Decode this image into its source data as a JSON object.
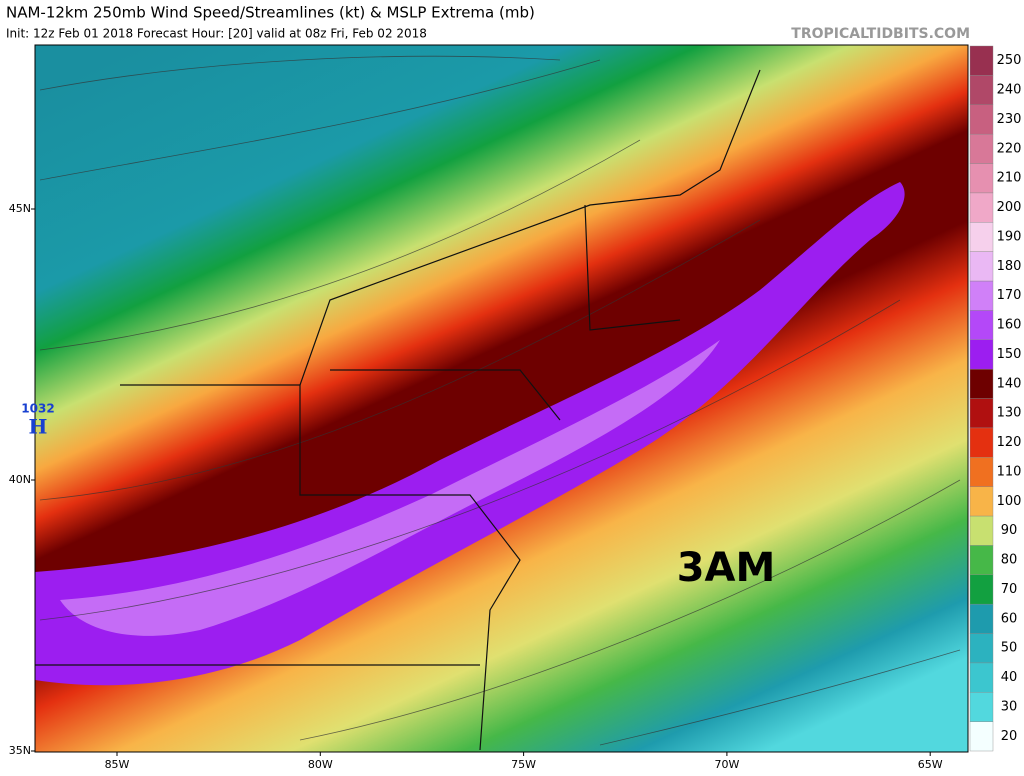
{
  "header": {
    "title": "NAM-12km 250mb Wind Speed/Streamlines (kt) & MSLP Extrema (mb)",
    "subtitle": "Init: 12z Feb 01 2018   Forecast Hour: [20]   valid at 08z Fri, Feb 02 2018",
    "site": "TROPICALTIDBITS.COM"
  },
  "map": {
    "lat_labels": [
      "45N",
      "40N",
      "35N"
    ],
    "lon_labels": [
      "85W",
      "80W",
      "75W",
      "70W",
      "65W"
    ],
    "pressure_label": "1032",
    "pressure_symbol": "H",
    "annotation": "3AM"
  },
  "colorbar": {
    "levels": [
      20,
      30,
      40,
      50,
      60,
      70,
      80,
      90,
      100,
      110,
      120,
      130,
      140,
      150,
      160,
      170,
      180,
      190,
      200,
      210,
      220,
      230,
      240,
      250
    ],
    "colors": [
      "#f4ffff",
      "#52d8de",
      "#3cc6cf",
      "#2cb2bf",
      "#1e9bad",
      "#12a040",
      "#46b848",
      "#c8e070",
      "#f8b448",
      "#f07020",
      "#e43010",
      "#b01010",
      "#6e0000",
      "#9c1ef0",
      "#b448f8",
      "#d080f8",
      "#eab8f4",
      "#f6d0ec",
      "#f0a8c8",
      "#e690b0",
      "#d87898",
      "#c86080",
      "#b04868",
      "#983050"
    ]
  }
}
